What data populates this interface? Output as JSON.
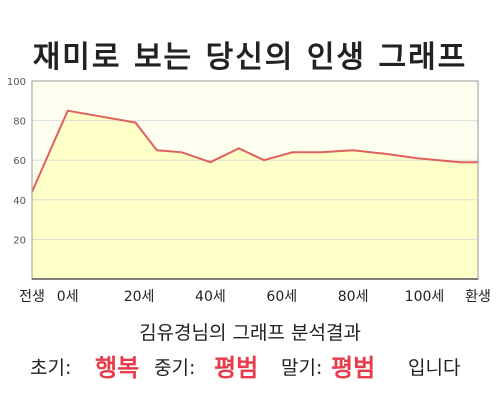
{
  "title": "재미로 보는 당신의 인생 그래프",
  "chart_data": {
    "type": "area",
    "x": [
      -10,
      0,
      10,
      20,
      25,
      30,
      35,
      40,
      45,
      50,
      55,
      60,
      65,
      70,
      75,
      80
    ],
    "x_ticks": [
      {
        "value": -10,
        "label": "전생"
      },
      {
        "value": 0,
        "label": "0세"
      },
      {
        "value": 20,
        "label": "20세"
      },
      {
        "value": 40,
        "label": "40세"
      },
      {
        "value": 60,
        "label": "60세"
      },
      {
        "value": 80,
        "label": "80세"
      },
      {
        "value": 100,
        "label": "100세"
      },
      {
        "value": 115,
        "label": "환생"
      }
    ],
    "series": [
      {
        "x": [
          -10,
          0,
          19,
          25,
          32,
          40,
          48,
          55,
          63,
          71,
          80,
          90,
          98,
          110,
          115
        ],
        "values": [
          44,
          85,
          79,
          65,
          64,
          59,
          66,
          60,
          64,
          64,
          65,
          63,
          61,
          59,
          59
        ],
        "color": "#e06060",
        "fill": "#ffffc8"
      }
    ],
    "xlim": [
      -10,
      115
    ],
    "ylim": [
      0,
      100
    ],
    "y_ticks": [
      20,
      40,
      60,
      80,
      100
    ],
    "grid": true,
    "background": "#fffff0"
  },
  "subtitle": "김유경님의 그래프 분석결과",
  "result": {
    "early_label": "초기:",
    "early_value": "행복",
    "mid_label": "중기:",
    "mid_value": "평범",
    "late_label": "말기:",
    "late_value": "평범",
    "ending": "입니다",
    "highlight_color": "#e83c4a"
  }
}
